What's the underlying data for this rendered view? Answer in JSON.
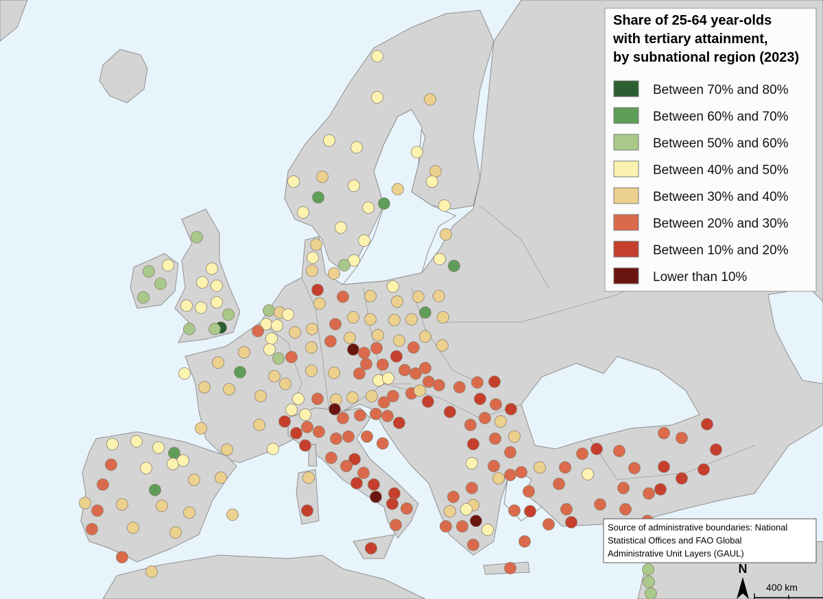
{
  "legend": {
    "title": [
      "Share of 25-64 year-olds",
      "with tertiary attainment,",
      "by subnational region (2023)"
    ],
    "items": [
      {
        "label": "Between 70% and 80%",
        "color": "#2b5f31"
      },
      {
        "label": "Between 60% and 70%",
        "color": "#5e9e58"
      },
      {
        "label": "Between 50% and 60%",
        "color": "#a9c98a"
      },
      {
        "label": "Between 40% and 50%",
        "color": "#fdf3b0"
      },
      {
        "label": "Between 30% and 40%",
        "color": "#ecd08e"
      },
      {
        "label": "Between 20% and 30%",
        "color": "#da6a4b"
      },
      {
        "label": "Between 10% and 20%",
        "color": "#c63e2c"
      },
      {
        "label": "Lower than 10%",
        "color": "#6b1510"
      }
    ]
  },
  "source_note": [
    "Source of administrative boundaries: National",
    "Statistical Offices and FAO Global",
    "Administrative Unit Layers (GAUL)"
  ],
  "north_label": "N",
  "scale_label": "400 km"
}
